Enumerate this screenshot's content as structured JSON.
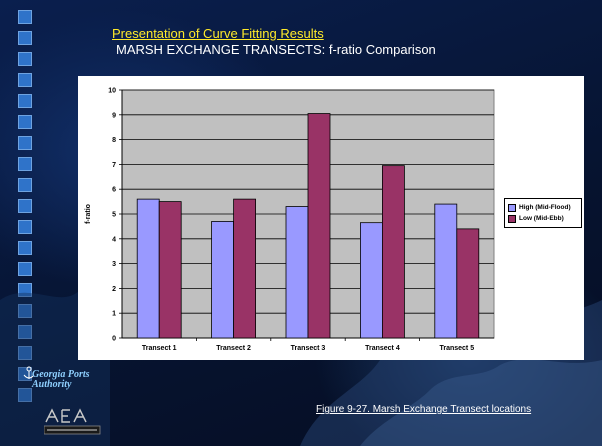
{
  "slide": {
    "title": "Presentation of Curve Fitting Results",
    "subtitle": "MARSH EXCHANGE TRANSECTS: f-ratio Comparison",
    "caption": "Figure 9-27.  Marsh Exchange Transect locations",
    "logo_text": "Georgia Ports Authority",
    "colors": {
      "background": "#0a1f4e",
      "title": "#ffea2a",
      "blocks": "#2f73c9"
    }
  },
  "chart_data": {
    "type": "bar",
    "categories": [
      "Transect 1",
      "Transect 2",
      "Transect 3",
      "Transect 4",
      "Transect 5"
    ],
    "series": [
      {
        "name": "High (Mid-Flood)",
        "values": [
          5.6,
          4.7,
          5.3,
          4.65,
          5.4
        ],
        "color": "#9999ff"
      },
      {
        "name": "Low (Mid-Ebb)",
        "values": [
          5.5,
          5.6,
          9.05,
          6.95,
          4.4
        ],
        "color": "#993366"
      }
    ],
    "title": "",
    "xlabel": "",
    "ylabel": "f-ratio",
    "ylim": [
      0,
      10
    ],
    "yticks": [
      0,
      1,
      2,
      3,
      4,
      5,
      6,
      7,
      8,
      9,
      10
    ],
    "grid": true,
    "plot_background": "#c0c0c0",
    "legend": "right"
  }
}
